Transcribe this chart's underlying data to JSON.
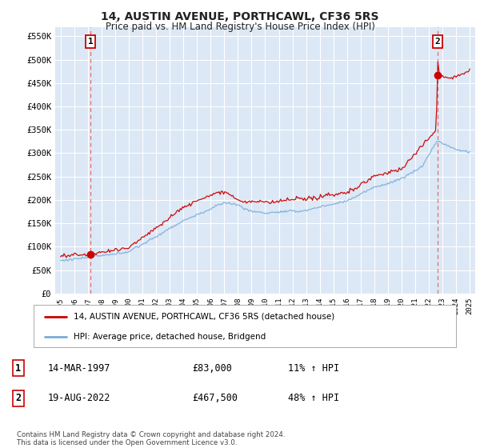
{
  "title": "14, AUSTIN AVENUE, PORTHCAWL, CF36 5RS",
  "subtitle": "Price paid vs. HM Land Registry's House Price Index (HPI)",
  "ylim": [
    0,
    570000
  ],
  "yticks": [
    0,
    50000,
    100000,
    150000,
    200000,
    250000,
    300000,
    350000,
    400000,
    450000,
    500000,
    550000
  ],
  "ytick_labels": [
    "£0",
    "£50K",
    "£100K",
    "£150K",
    "£200K",
    "£250K",
    "£300K",
    "£350K",
    "£400K",
    "£450K",
    "£500K",
    "£550K"
  ],
  "background_color": "#ffffff",
  "plot_bg_color": "#dce8f5",
  "grid_color": "#ffffff",
  "sale1_date": 1997.2,
  "sale1_price": 83000,
  "sale1_label": "1",
  "sale2_date": 2022.63,
  "sale2_price": 467500,
  "sale2_label": "2",
  "legend_entry1": "14, AUSTIN AVENUE, PORTHCAWL, CF36 5RS (detached house)",
  "legend_entry2": "HPI: Average price, detached house, Bridgend",
  "table_row1": [
    "1",
    "14-MAR-1997",
    "£83,000",
    "11% ↑ HPI"
  ],
  "table_row2": [
    "2",
    "19-AUG-2022",
    "£467,500",
    "48% ↑ HPI"
  ],
  "footnote": "Contains HM Land Registry data © Crown copyright and database right 2024.\nThis data is licensed under the Open Government Licence v3.0.",
  "red_line_color": "#cc0000",
  "blue_line_color": "#7aaddb",
  "marker_color": "#cc0000",
  "dashed_line_color": "#e07070"
}
